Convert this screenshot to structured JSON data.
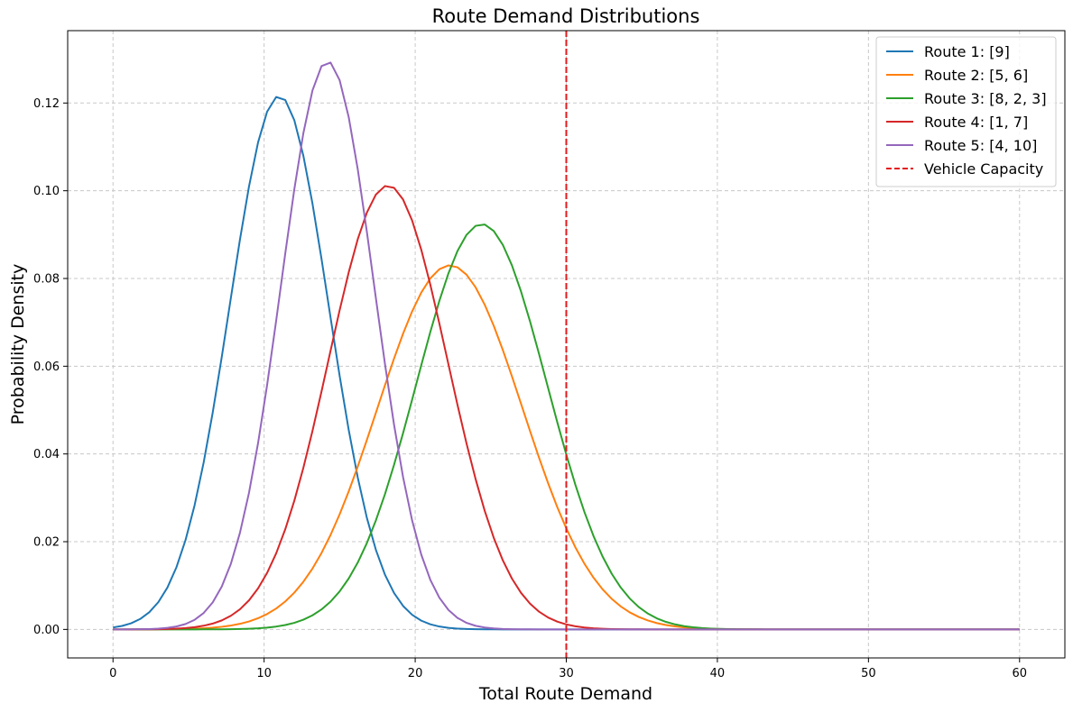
{
  "chart_data": {
    "type": "line",
    "title": "Route Demand Distributions",
    "xlabel": "Total Route Demand",
    "ylabel": "Probability Density",
    "xlim": [
      -3,
      63
    ],
    "ylim": [
      -0.0065,
      0.1365
    ],
    "xticks": [
      0,
      10,
      20,
      30,
      40,
      50,
      60
    ],
    "xtick_labels": [
      "0",
      "10",
      "20",
      "30",
      "40",
      "50",
      "60"
    ],
    "yticks": [
      0.0,
      0.02,
      0.04,
      0.06,
      0.08,
      0.1,
      0.12
    ],
    "ytick_labels": [
      "0.00",
      "0.02",
      "0.04",
      "0.06",
      "0.08",
      "0.10",
      "0.12"
    ],
    "grid": true,
    "legend_position": "top-right",
    "x_range": [
      0,
      60
    ],
    "series": [
      {
        "name": "Route 1: [9]",
        "color": "#1f77b4",
        "mean": 11.0,
        "std": 3.28,
        "peak": 0.1216
      },
      {
        "name": "Route 2: [5, 6]",
        "color": "#ff7f0e",
        "mean": 22.3,
        "std": 4.81,
        "peak": 0.083
      },
      {
        "name": "Route 3: [8, 2, 3]",
        "color": "#2ca02c",
        "mean": 24.4,
        "std": 4.32,
        "peak": 0.0924
      },
      {
        "name": "Route 4: [1, 7]",
        "color": "#d62728",
        "mean": 18.2,
        "std": 3.94,
        "peak": 0.1012
      },
      {
        "name": "Route 5: [4, 10]",
        "color": "#9467bd",
        "mean": 14.2,
        "std": 3.08,
        "peak": 0.1295
      }
    ],
    "reference_line": {
      "name": "Vehicle Capacity",
      "x": 30,
      "color": "#e31a1c",
      "style": "dashed"
    }
  }
}
